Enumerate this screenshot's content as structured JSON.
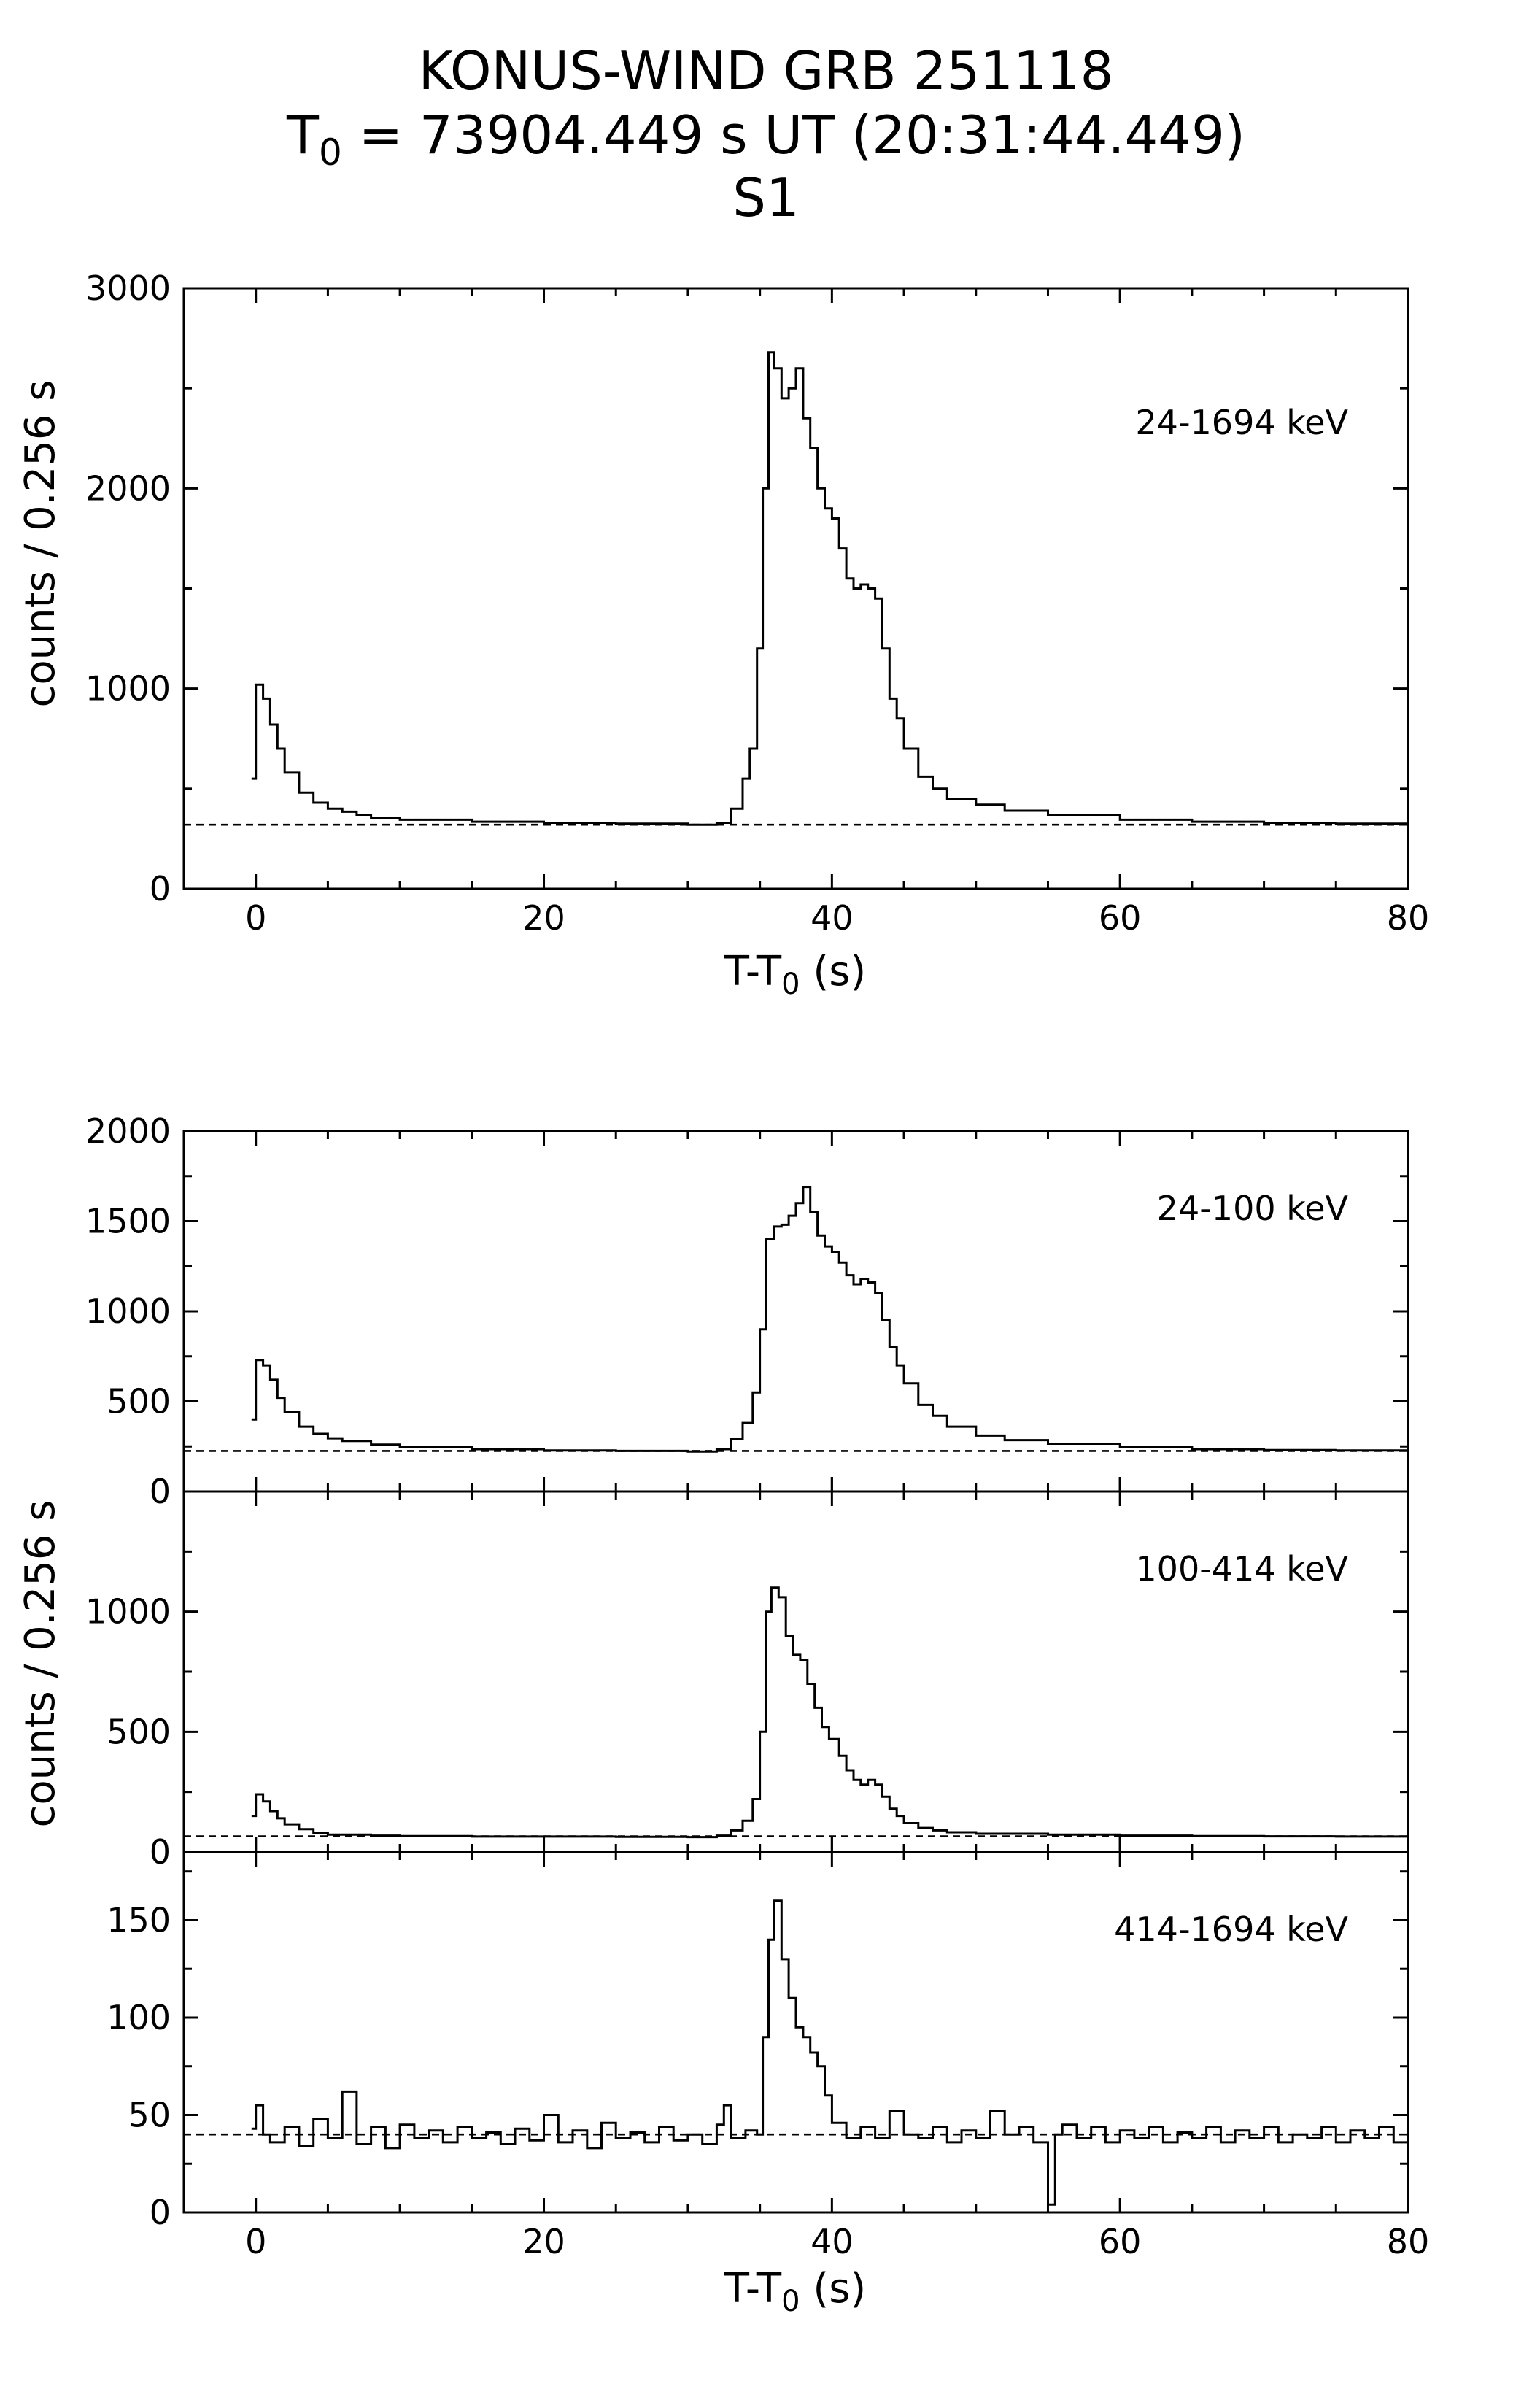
{
  "header": {
    "title_line1": "KONUS-WIND GRB 251118",
    "title_line2_prefix": "T",
    "title_line2_sub": "0",
    "title_line2_rest": " = 73904.449 s UT (20:31:44.449)",
    "title_line3": "S1"
  },
  "axes_text": {
    "ylabel": "counts / 0.256 s",
    "xlabel_prefix": "T-T",
    "xlabel_sub": "0",
    "xlabel_suffix": " (s)"
  },
  "chart_data": [
    {
      "type": "line",
      "title": "24-1694 keV",
      "xlim": [
        -5,
        80
      ],
      "ylim": [
        0,
        3000
      ],
      "xticks": [
        0,
        20,
        40,
        60,
        80
      ],
      "yticks": [
        0,
        1000,
        2000,
        3000
      ],
      "background": 320,
      "series": [
        {
          "name": "24-1694 keV",
          "points": [
            [
              -0.3,
              550
            ],
            [
              0,
              1020
            ],
            [
              0.5,
              950
            ],
            [
              1,
              820
            ],
            [
              1.5,
              700
            ],
            [
              2,
              580
            ],
            [
              3,
              480
            ],
            [
              4,
              430
            ],
            [
              5,
              400
            ],
            [
              6,
              385
            ],
            [
              7,
              370
            ],
            [
              8,
              355
            ],
            [
              10,
              345
            ],
            [
              15,
              335
            ],
            [
              20,
              330
            ],
            [
              25,
              325
            ],
            [
              30,
              320
            ],
            [
              32,
              330
            ],
            [
              33,
              400
            ],
            [
              33.8,
              550
            ],
            [
              34.3,
              700
            ],
            [
              34.8,
              1200
            ],
            [
              35.2,
              2000
            ],
            [
              35.6,
              2680
            ],
            [
              36,
              2600
            ],
            [
              36.5,
              2450
            ],
            [
              37,
              2500
            ],
            [
              37.5,
              2600
            ],
            [
              38,
              2350
            ],
            [
              38.5,
              2200
            ],
            [
              39,
              2000
            ],
            [
              39.5,
              1900
            ],
            [
              40,
              1850
            ],
            [
              40.5,
              1700
            ],
            [
              41,
              1550
            ],
            [
              41.5,
              1500
            ],
            [
              42,
              1520
            ],
            [
              42.5,
              1500
            ],
            [
              43,
              1450
            ],
            [
              43.5,
              1200
            ],
            [
              44,
              950
            ],
            [
              44.5,
              850
            ],
            [
              45,
              700
            ],
            [
              46,
              560
            ],
            [
              47,
              500
            ],
            [
              48,
              450
            ],
            [
              50,
              420
            ],
            [
              52,
              390
            ],
            [
              55,
              370
            ],
            [
              60,
              345
            ],
            [
              65,
              335
            ],
            [
              70,
              330
            ],
            [
              75,
              325
            ],
            [
              80,
              325
            ]
          ]
        }
      ]
    },
    {
      "type": "line",
      "title": "24-100 keV",
      "xlim": [
        -5,
        80
      ],
      "ylim": [
        0,
        2000
      ],
      "xticks": [
        0,
        20,
        40,
        60,
        80
      ],
      "yticks": [
        0,
        500,
        1000,
        1500,
        2000
      ],
      "background": 225,
      "series": [
        {
          "name": "24-100 keV",
          "points": [
            [
              -0.3,
              400
            ],
            [
              0,
              730
            ],
            [
              0.5,
              700
            ],
            [
              1,
              620
            ],
            [
              1.5,
              520
            ],
            [
              2,
              440
            ],
            [
              3,
              360
            ],
            [
              4,
              320
            ],
            [
              5,
              295
            ],
            [
              6,
              280
            ],
            [
              8,
              260
            ],
            [
              10,
              245
            ],
            [
              15,
              235
            ],
            [
              20,
              228
            ],
            [
              25,
              225
            ],
            [
              30,
              222
            ],
            [
              32,
              235
            ],
            [
              33,
              290
            ],
            [
              33.8,
              380
            ],
            [
              34.5,
              550
            ],
            [
              35,
              900
            ],
            [
              35.4,
              1400
            ],
            [
              36,
              1470
            ],
            [
              36.5,
              1480
            ],
            [
              37,
              1530
            ],
            [
              37.5,
              1600
            ],
            [
              38,
              1690
            ],
            [
              38.5,
              1550
            ],
            [
              39,
              1420
            ],
            [
              39.5,
              1360
            ],
            [
              40,
              1330
            ],
            [
              40.5,
              1270
            ],
            [
              41,
              1200
            ],
            [
              41.5,
              1150
            ],
            [
              42,
              1180
            ],
            [
              42.5,
              1160
            ],
            [
              43,
              1100
            ],
            [
              43.5,
              950
            ],
            [
              44,
              800
            ],
            [
              44.5,
              700
            ],
            [
              45,
              600
            ],
            [
              46,
              480
            ],
            [
              47,
              420
            ],
            [
              48,
              360
            ],
            [
              50,
              310
            ],
            [
              52,
              285
            ],
            [
              55,
              265
            ],
            [
              60,
              245
            ],
            [
              65,
              235
            ],
            [
              70,
              230
            ],
            [
              75,
              228
            ],
            [
              80,
              228
            ]
          ]
        }
      ]
    },
    {
      "type": "line",
      "title": "100-414 keV",
      "xlim": [
        -5,
        80
      ],
      "ylim": [
        0,
        1500
      ],
      "xticks": [
        0,
        20,
        40,
        60,
        80
      ],
      "yticks": [
        0,
        500,
        1000
      ],
      "background": 65,
      "series": [
        {
          "name": "100-414 keV",
          "points": [
            [
              -0.3,
              150
            ],
            [
              0,
              240
            ],
            [
              0.5,
              210
            ],
            [
              1,
              170
            ],
            [
              1.5,
              140
            ],
            [
              2,
              115
            ],
            [
              3,
              95
            ],
            [
              4,
              80
            ],
            [
              5,
              72
            ],
            [
              8,
              68
            ],
            [
              10,
              66
            ],
            [
              15,
              64
            ],
            [
              20,
              64
            ],
            [
              25,
              63
            ],
            [
              30,
              62
            ],
            [
              32,
              68
            ],
            [
              33,
              90
            ],
            [
              33.8,
              130
            ],
            [
              34.5,
              220
            ],
            [
              35,
              500
            ],
            [
              35.4,
              1000
            ],
            [
              35.8,
              1100
            ],
            [
              36.3,
              1060
            ],
            [
              36.8,
              900
            ],
            [
              37.3,
              820
            ],
            [
              37.8,
              800
            ],
            [
              38.3,
              700
            ],
            [
              38.8,
              600
            ],
            [
              39.3,
              520
            ],
            [
              39.8,
              470
            ],
            [
              40.5,
              400
            ],
            [
              41,
              340
            ],
            [
              41.5,
              300
            ],
            [
              42,
              280
            ],
            [
              42.5,
              300
            ],
            [
              43,
              280
            ],
            [
              43.5,
              230
            ],
            [
              44,
              180
            ],
            [
              44.5,
              150
            ],
            [
              45,
              120
            ],
            [
              46,
              100
            ],
            [
              47,
              90
            ],
            [
              48,
              82
            ],
            [
              50,
              76
            ],
            [
              55,
              72
            ],
            [
              60,
              68
            ],
            [
              65,
              66
            ],
            [
              70,
              65
            ],
            [
              75,
              64
            ],
            [
              80,
              64
            ]
          ]
        }
      ]
    },
    {
      "type": "line",
      "title": "414-1694 keV",
      "xlim": [
        -5,
        80
      ],
      "ylim": [
        0,
        185
      ],
      "xticks": [
        0,
        20,
        40,
        60,
        80
      ],
      "yticks": [
        0,
        50,
        100,
        150
      ],
      "background": 40,
      "series": [
        {
          "name": "414-1694 keV",
          "points": [
            [
              -0.3,
              43
            ],
            [
              0,
              55
            ],
            [
              0.5,
              40
            ],
            [
              1,
              36
            ],
            [
              2,
              44
            ],
            [
              3,
              34
            ],
            [
              4,
              48
            ],
            [
              5,
              38
            ],
            [
              6,
              62
            ],
            [
              7,
              35
            ],
            [
              8,
              44
            ],
            [
              9,
              33
            ],
            [
              10,
              45
            ],
            [
              11,
              38
            ],
            [
              12,
              42
            ],
            [
              13,
              36
            ],
            [
              14,
              44
            ],
            [
              15,
              38
            ],
            [
              16,
              41
            ],
            [
              17,
              35
            ],
            [
              18,
              43
            ],
            [
              19,
              37
            ],
            [
              20,
              50
            ],
            [
              21,
              36
            ],
            [
              22,
              42
            ],
            [
              23,
              33
            ],
            [
              24,
              46
            ],
            [
              25,
              38
            ],
            [
              26,
              41
            ],
            [
              27,
              36
            ],
            [
              28,
              44
            ],
            [
              29,
              37
            ],
            [
              30,
              40
            ],
            [
              31,
              35
            ],
            [
              32,
              45
            ],
            [
              32.5,
              55
            ],
            [
              33,
              38
            ],
            [
              34,
              42
            ],
            [
              34.8,
              40
            ],
            [
              35.2,
              90
            ],
            [
              35.6,
              140
            ],
            [
              36,
              160
            ],
            [
              36.5,
              130
            ],
            [
              37,
              110
            ],
            [
              37.5,
              95
            ],
            [
              38,
              90
            ],
            [
              38.5,
              82
            ],
            [
              39,
              75
            ],
            [
              39.5,
              60
            ],
            [
              40,
              46
            ],
            [
              41,
              38
            ],
            [
              42,
              44
            ],
            [
              43,
              38
            ],
            [
              44,
              52
            ],
            [
              45,
              40
            ],
            [
              46,
              38
            ],
            [
              47,
              44
            ],
            [
              48,
              36
            ],
            [
              49,
              42
            ],
            [
              50,
              38
            ],
            [
              51,
              52
            ],
            [
              52,
              40
            ],
            [
              53,
              44
            ],
            [
              54,
              36
            ],
            [
              55,
              4
            ],
            [
              55.5,
              40
            ],
            [
              56,
              45
            ],
            [
              57,
              38
            ],
            [
              58,
              44
            ],
            [
              59,
              36
            ],
            [
              60,
              42
            ],
            [
              61,
              38
            ],
            [
              62,
              44
            ],
            [
              63,
              36
            ],
            [
              64,
              41
            ],
            [
              65,
              38
            ],
            [
              66,
              44
            ],
            [
              67,
              36
            ],
            [
              68,
              42
            ],
            [
              69,
              38
            ],
            [
              70,
              44
            ],
            [
              71,
              36
            ],
            [
              72,
              40
            ],
            [
              73,
              38
            ],
            [
              74,
              44
            ],
            [
              75,
              36
            ],
            [
              76,
              42
            ],
            [
              77,
              38
            ],
            [
              78,
              44
            ],
            [
              79,
              36
            ],
            [
              80,
              42
            ]
          ]
        }
      ]
    }
  ]
}
